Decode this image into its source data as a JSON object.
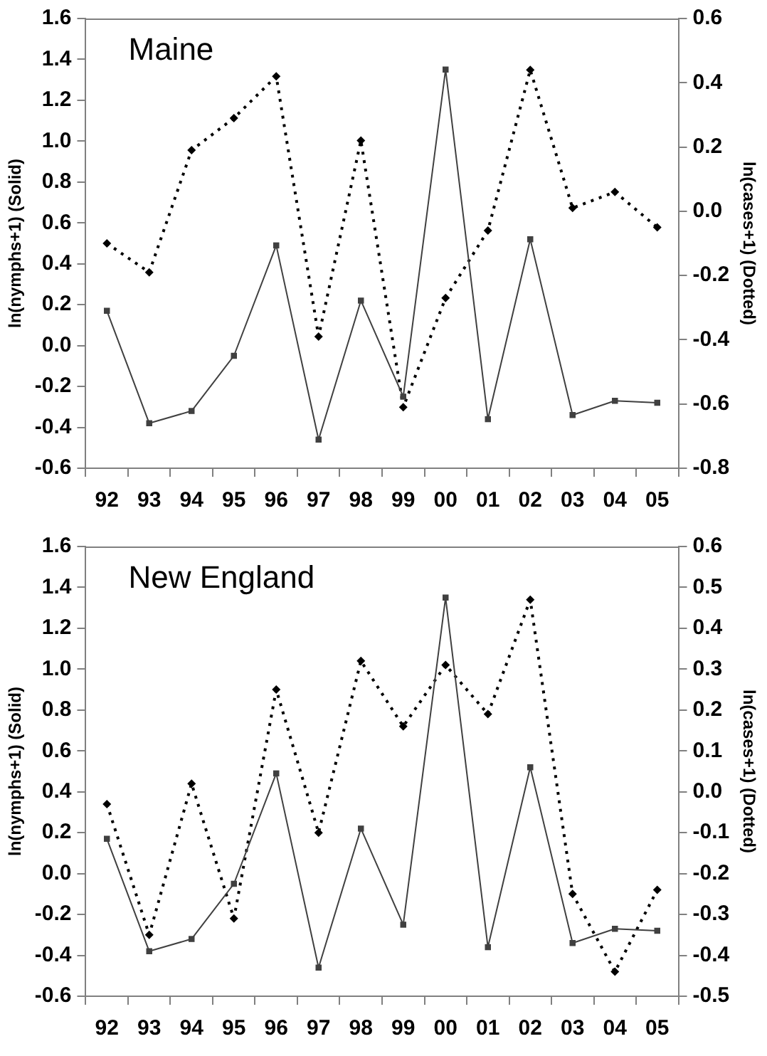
{
  "chart_data": [
    {
      "type": "line",
      "title": "Maine",
      "categories": [
        "92",
        "93",
        "94",
        "95",
        "96",
        "97",
        "98",
        "99",
        "00",
        "01",
        "02",
        "03",
        "04",
        "05"
      ],
      "ylabel": "ln(nymphs+1) (Solid)",
      "y2label": "ln(cases+1) (Dotted)",
      "ylim": [
        -0.6,
        1.6
      ],
      "yticks": [
        {
          "value": -0.6,
          "label": "-0.6"
        },
        {
          "value": -0.4,
          "label": "-0.4"
        },
        {
          "value": -0.2,
          "label": "-0.2"
        },
        {
          "value": 0,
          "label": "0.0"
        },
        {
          "value": 0.2,
          "label": "0.2"
        },
        {
          "value": 0.4,
          "label": "0.4"
        },
        {
          "value": 0.6,
          "label": "0.6"
        },
        {
          "value": 0.8,
          "label": "0.8"
        },
        {
          "value": 1,
          "label": "1.0"
        },
        {
          "value": 1.2,
          "label": "1.2"
        },
        {
          "value": 1.4,
          "label": "1.4"
        },
        {
          "value": 1.6,
          "label": "1.6"
        }
      ],
      "y2lim": [
        -0.8,
        0.6
      ],
      "y2ticks": [
        {
          "value": -0.8,
          "label": "-0.8"
        },
        {
          "value": -0.6,
          "label": "-0.6"
        },
        {
          "value": -0.4,
          "label": "-0.4"
        },
        {
          "value": -0.2,
          "label": "-0.2"
        },
        {
          "value": 0,
          "label": "0.0"
        },
        {
          "value": 0.2,
          "label": "0.2"
        },
        {
          "value": 0.4,
          "label": "0.4"
        },
        {
          "value": 0.6,
          "label": "0.6"
        }
      ],
      "grid": false,
      "legend": false,
      "series": [
        {
          "color": "#404040",
          "marker": "square",
          "line_style": "solid",
          "values": [
            0.17,
            -0.38,
            -0.32,
            -0.05,
            0.49,
            -0.46,
            0.22,
            -0.25,
            1.35,
            -0.36,
            0.52,
            -0.34,
            -0.27,
            -0.28
          ]
        },
        {
          "color": "#000000",
          "marker": "diamond",
          "line_style": "dotted",
          "axis": "y2",
          "values": [
            -0.1,
            -0.19,
            0.19,
            0.29,
            0.42,
            -0.39,
            0.22,
            -0.61,
            -0.27,
            -0.06,
            0.44,
            0.01,
            0.06,
            -0.05
          ]
        }
      ]
    },
    {
      "type": "line",
      "title": "New England",
      "categories": [
        "92",
        "93",
        "94",
        "95",
        "96",
        "97",
        "98",
        "99",
        "00",
        "01",
        "02",
        "03",
        "04",
        "05"
      ],
      "ylabel": "ln(nymphs+1) (Solid)",
      "y2label": "ln(cases+1) (Dotted)",
      "ylim": [
        -0.6,
        1.6
      ],
      "yticks": [
        {
          "value": -0.6,
          "label": "-0.6"
        },
        {
          "value": -0.4,
          "label": "-0.4"
        },
        {
          "value": -0.2,
          "label": "-0.2"
        },
        {
          "value": 0,
          "label": "0.0"
        },
        {
          "value": 0.2,
          "label": "0.2"
        },
        {
          "value": 0.4,
          "label": "0.4"
        },
        {
          "value": 0.6,
          "label": "0.6"
        },
        {
          "value": 0.8,
          "label": "0.8"
        },
        {
          "value": 1,
          "label": "1.0"
        },
        {
          "value": 1.2,
          "label": "1.2"
        },
        {
          "value": 1.4,
          "label": "1.4"
        },
        {
          "value": 1.6,
          "label": "1.6"
        }
      ],
      "y2lim": [
        -0.5,
        0.6
      ],
      "y2ticks": [
        {
          "value": -0.5,
          "label": "-0.5"
        },
        {
          "value": -0.4,
          "label": "-0.4"
        },
        {
          "value": -0.3,
          "label": "-0.3"
        },
        {
          "value": -0.2,
          "label": "-0.2"
        },
        {
          "value": -0.1,
          "label": "-0.1"
        },
        {
          "value": 0,
          "label": "0.0"
        },
        {
          "value": 0.1,
          "label": "0.1"
        },
        {
          "value": 0.2,
          "label": "0.2"
        },
        {
          "value": 0.3,
          "label": "0.3"
        },
        {
          "value": 0.4,
          "label": "0.4"
        },
        {
          "value": 0.5,
          "label": "0.5"
        },
        {
          "value": 0.6,
          "label": "0.6"
        }
      ],
      "grid": false,
      "legend": false,
      "series": [
        {
          "color": "#404040",
          "marker": "square",
          "line_style": "solid",
          "values": [
            0.17,
            -0.38,
            -0.32,
            -0.05,
            0.49,
            -0.46,
            0.22,
            -0.25,
            1.35,
            -0.36,
            0.52,
            -0.34,
            -0.27,
            -0.28
          ]
        },
        {
          "color": "#000000",
          "marker": "diamond",
          "line_style": "dotted",
          "axis": "y2",
          "values": [
            -0.03,
            -0.35,
            0.02,
            -0.31,
            0.25,
            -0.1,
            0.32,
            0.16,
            0.31,
            0.19,
            0.47,
            -0.25,
            -0.44,
            -0.24
          ]
        }
      ]
    }
  ]
}
